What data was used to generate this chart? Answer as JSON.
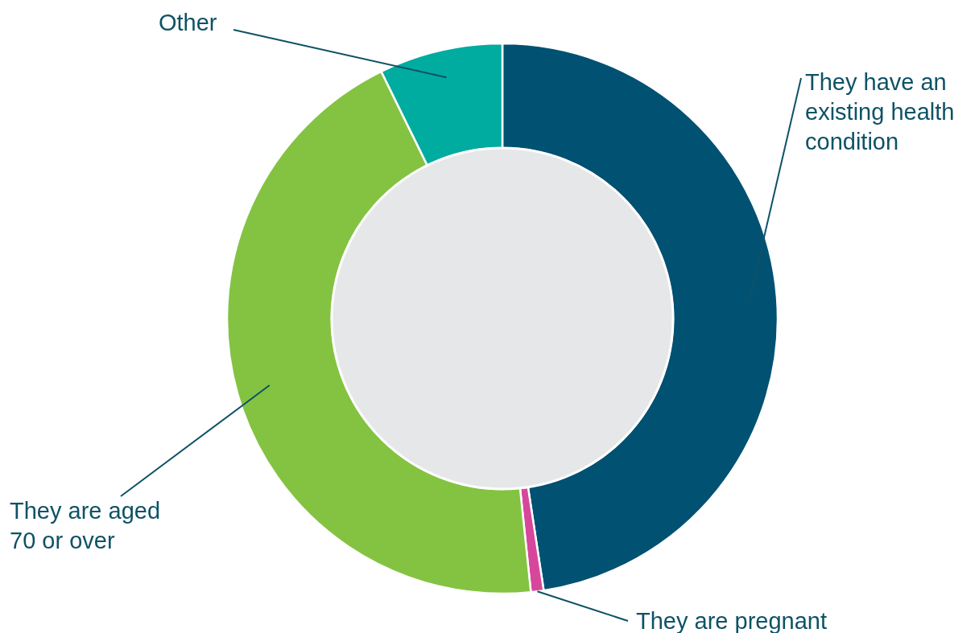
{
  "chart_data": {
    "type": "donut",
    "categories": [
      "They have an existing health condition",
      "They are pregnant",
      "They are aged 70 or over",
      "Other"
    ],
    "values": [
      47.6,
      0.75,
      44.4,
      7.25
    ],
    "colors": [
      "#005172",
      "#d6479c",
      "#84c341",
      "#00ab9f"
    ]
  }
}
